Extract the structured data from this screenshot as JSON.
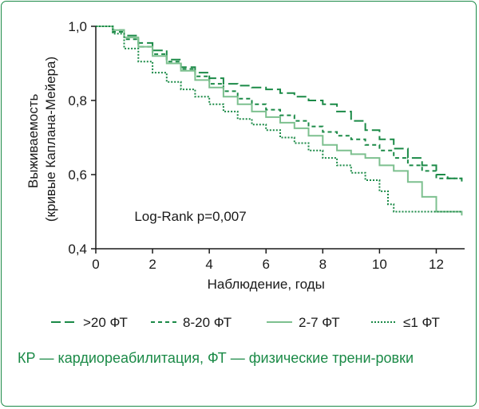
{
  "chart_data": {
    "type": "line",
    "xlabel": "Наблюдение, годы",
    "ylabel_lines": [
      "Выживаемость",
      "(кривые Каплана-Мейера)"
    ],
    "xlim": [
      0,
      13
    ],
    "ylim": [
      0.4,
      1.0
    ],
    "x_ticks": [
      0,
      2,
      4,
      6,
      8,
      10,
      12
    ],
    "y_ticks": [
      0.4,
      0.6,
      0.8,
      1.0
    ],
    "x_tick_labels": [
      "0",
      "2",
      "4",
      "6",
      "8",
      "10",
      "12"
    ],
    "y_tick_labels": [
      "0,4",
      "0,6",
      "0,8",
      "1,0"
    ],
    "grid": false,
    "annotation": "Log-Rank p=0,007",
    "legend_position": "bottom",
    "series": [
      {
        "name": ">20 ФТ",
        "color": "#1b8a47",
        "dash": "long-dash",
        "points": [
          [
            0,
            1.0
          ],
          [
            0.4,
            1.0
          ],
          [
            0.6,
            0.99
          ],
          [
            1,
            0.975
          ],
          [
            1.5,
            0.955
          ],
          [
            2,
            0.935
          ],
          [
            2.5,
            0.91
          ],
          [
            3,
            0.89
          ],
          [
            3.5,
            0.875
          ],
          [
            4,
            0.86
          ],
          [
            4.5,
            0.845
          ],
          [
            5,
            0.84
          ],
          [
            5.5,
            0.835
          ],
          [
            6,
            0.83
          ],
          [
            6.5,
            0.82
          ],
          [
            7,
            0.81
          ],
          [
            7.5,
            0.8
          ],
          [
            8,
            0.79
          ],
          [
            8.5,
            0.77
          ],
          [
            9,
            0.745
          ],
          [
            9.5,
            0.72
          ],
          [
            10,
            0.695
          ],
          [
            10.5,
            0.67
          ],
          [
            11,
            0.645
          ],
          [
            11.5,
            0.625
          ],
          [
            12,
            0.6
          ],
          [
            12.4,
            0.59
          ],
          [
            12.9,
            0.59
          ]
        ]
      },
      {
        "name": "8-20 ФТ",
        "color": "#1b8a47",
        "dash": "short-dash",
        "points": [
          [
            0,
            1.0
          ],
          [
            0.4,
            1.0
          ],
          [
            0.6,
            0.985
          ],
          [
            1,
            0.965
          ],
          [
            1.5,
            0.945
          ],
          [
            2,
            0.925
          ],
          [
            2.5,
            0.905
          ],
          [
            3,
            0.885
          ],
          [
            3.5,
            0.865
          ],
          [
            4,
            0.845
          ],
          [
            4.5,
            0.825
          ],
          [
            5,
            0.805
          ],
          [
            5.5,
            0.79
          ],
          [
            6,
            0.775
          ],
          [
            6.5,
            0.76
          ],
          [
            7,
            0.745
          ],
          [
            7.5,
            0.73
          ],
          [
            8,
            0.715
          ],
          [
            8.5,
            0.705
          ],
          [
            9,
            0.695
          ],
          [
            9.5,
            0.68
          ],
          [
            10,
            0.665
          ],
          [
            10.5,
            0.645
          ],
          [
            11,
            0.625
          ],
          [
            11.5,
            0.61
          ],
          [
            12,
            0.59
          ],
          [
            12.9,
            0.575
          ]
        ]
      },
      {
        "name": "2-7 ФТ",
        "color": "#7dc08f",
        "dash": "solid",
        "points": [
          [
            0,
            1.0
          ],
          [
            0.4,
            1.0
          ],
          [
            0.6,
            0.99
          ],
          [
            1,
            0.97
          ],
          [
            1.5,
            0.945
          ],
          [
            2,
            0.92
          ],
          [
            2.5,
            0.9
          ],
          [
            3,
            0.88
          ],
          [
            3.5,
            0.855
          ],
          [
            4,
            0.835
          ],
          [
            4.5,
            0.81
          ],
          [
            5,
            0.79
          ],
          [
            5.5,
            0.77
          ],
          [
            6,
            0.755
          ],
          [
            6.5,
            0.74
          ],
          [
            7,
            0.725
          ],
          [
            7.5,
            0.705
          ],
          [
            8,
            0.68
          ],
          [
            8.5,
            0.665
          ],
          [
            9,
            0.655
          ],
          [
            9.5,
            0.645
          ],
          [
            10,
            0.625
          ],
          [
            10.5,
            0.61
          ],
          [
            11,
            0.58
          ],
          [
            11.5,
            0.54
          ],
          [
            12,
            0.5
          ],
          [
            12.9,
            0.49
          ]
        ]
      },
      {
        "name": "≤1 ФТ",
        "color": "#1b8a47",
        "dash": "dotted",
        "points": [
          [
            0,
            1.0
          ],
          [
            0.4,
            1.0
          ],
          [
            0.6,
            0.98
          ],
          [
            1,
            0.94
          ],
          [
            1.5,
            0.905
          ],
          [
            2,
            0.875
          ],
          [
            2.5,
            0.85
          ],
          [
            3,
            0.83
          ],
          [
            3.5,
            0.81
          ],
          [
            4,
            0.79
          ],
          [
            4.5,
            0.77
          ],
          [
            5,
            0.75
          ],
          [
            5.5,
            0.735
          ],
          [
            6,
            0.72
          ],
          [
            6.5,
            0.7
          ],
          [
            7,
            0.685
          ],
          [
            7.5,
            0.665
          ],
          [
            8,
            0.645
          ],
          [
            8.5,
            0.625
          ],
          [
            9,
            0.605
          ],
          [
            9.5,
            0.585
          ],
          [
            10,
            0.555
          ],
          [
            10.3,
            0.52
          ],
          [
            10.5,
            0.5
          ],
          [
            12.9,
            0.5
          ]
        ]
      }
    ]
  },
  "caption": "КР — кардиореабилитация, ФТ — физические трени-ровки"
}
